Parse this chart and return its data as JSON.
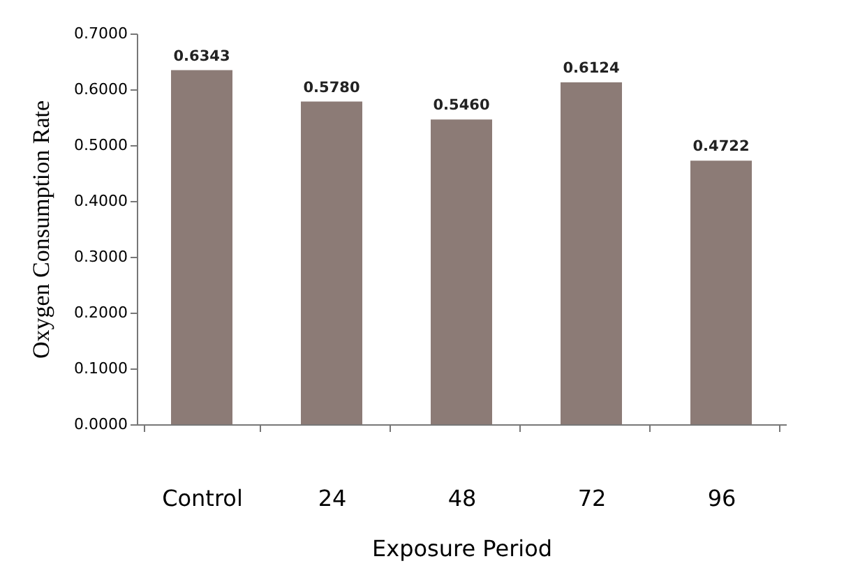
{
  "chart_data": {
    "type": "bar",
    "xlabel": "Exposure Period",
    "ylabel": "Oxygen Consumption Rate",
    "categories": [
      "Control",
      "24",
      "48",
      "72",
      "96"
    ],
    "values": [
      0.6343,
      0.578,
      0.546,
      0.6124,
      0.4722
    ],
    "value_labels": [
      "0.6343",
      "0.5780",
      "0.5460",
      "0.6124",
      "0.4722"
    ],
    "color": "#8c7b76",
    "ylim": [
      0,
      0.7
    ],
    "yticks": [
      {
        "value": 0,
        "label": "0.0000"
      },
      {
        "value": 0.1,
        "label": "0.1000"
      },
      {
        "value": 0.2,
        "label": "0.2000"
      },
      {
        "value": 0.3,
        "label": "0.3000"
      },
      {
        "value": 0.4,
        "label": "0.4000"
      },
      {
        "value": 0.5,
        "label": "0.5000"
      },
      {
        "value": 0.6,
        "label": "0.6000"
      },
      {
        "value": 0.7,
        "label": "0.7000"
      }
    ],
    "grid": false
  }
}
